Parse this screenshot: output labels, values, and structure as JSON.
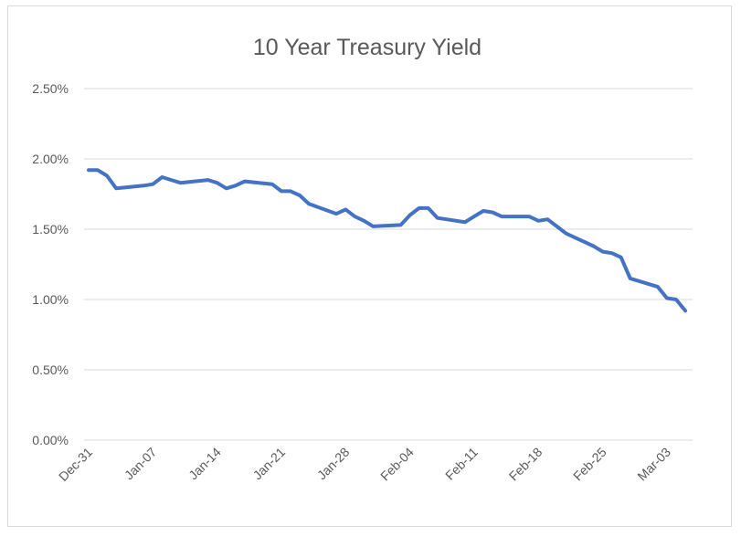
{
  "chart_data": {
    "type": "line",
    "title": "10 Year Treasury Yield",
    "xlabel": "",
    "ylabel": "",
    "ylim": [
      0,
      0.025
    ],
    "y_tick_values": [
      0,
      0.005,
      0.01,
      0.015,
      0.02,
      0.025
    ],
    "y_tick_labels": [
      "0.00%",
      "0.50%",
      "1.00%",
      "1.50%",
      "2.00%",
      "2.50%"
    ],
    "x_tick_labels": [
      "Dec-31",
      "Jan-07",
      "Jan-14",
      "Jan-21",
      "Jan-28",
      "Feb-04",
      "Feb-11",
      "Feb-18",
      "Feb-25",
      "Mar-03"
    ],
    "grid": "horizontal",
    "legend": "none",
    "series_color": "#4472c4",
    "series": [
      {
        "values": [
          {
            "date": "Dec-31",
            "value": 0.0192
          },
          {
            "date": "Jan-01",
            "value": 0.0192
          },
          {
            "date": "Jan-02",
            "value": 0.0188
          },
          {
            "date": "Jan-03",
            "value": 0.0179
          },
          {
            "date": "Jan-06",
            "value": 0.0181
          },
          {
            "date": "Jan-07",
            "value": 0.0182
          },
          {
            "date": "Jan-08",
            "value": 0.0187
          },
          {
            "date": "Jan-09",
            "value": 0.0185
          },
          {
            "date": "Jan-10",
            "value": 0.0183
          },
          {
            "date": "Jan-13",
            "value": 0.0185
          },
          {
            "date": "Jan-14",
            "value": 0.0183
          },
          {
            "date": "Jan-15",
            "value": 0.0179
          },
          {
            "date": "Jan-16",
            "value": 0.0181
          },
          {
            "date": "Jan-17",
            "value": 0.0184
          },
          {
            "date": "Jan-20",
            "value": 0.0182
          },
          {
            "date": "Jan-21",
            "value": 0.0177
          },
          {
            "date": "Jan-22",
            "value": 0.0177
          },
          {
            "date": "Jan-23",
            "value": 0.0174
          },
          {
            "date": "Jan-24",
            "value": 0.0168
          },
          {
            "date": "Jan-27",
            "value": 0.0161
          },
          {
            "date": "Jan-28",
            "value": 0.0164
          },
          {
            "date": "Jan-29",
            "value": 0.0159
          },
          {
            "date": "Jan-30",
            "value": 0.0156
          },
          {
            "date": "Jan-31",
            "value": 0.0152
          },
          {
            "date": "Feb-03",
            "value": 0.0153
          },
          {
            "date": "Feb-04",
            "value": 0.016
          },
          {
            "date": "Feb-05",
            "value": 0.0165
          },
          {
            "date": "Feb-06",
            "value": 0.0165
          },
          {
            "date": "Feb-07",
            "value": 0.0158
          },
          {
            "date": "Feb-10",
            "value": 0.0155
          },
          {
            "date": "Feb-11",
            "value": 0.0159
          },
          {
            "date": "Feb-12",
            "value": 0.0163
          },
          {
            "date": "Feb-13",
            "value": 0.0162
          },
          {
            "date": "Feb-14",
            "value": 0.0159
          },
          {
            "date": "Feb-17",
            "value": 0.0159
          },
          {
            "date": "Feb-18",
            "value": 0.0156
          },
          {
            "date": "Feb-19",
            "value": 0.0157
          },
          {
            "date": "Feb-20",
            "value": 0.0152
          },
          {
            "date": "Feb-21",
            "value": 0.0147
          },
          {
            "date": "Feb-24",
            "value": 0.0138
          },
          {
            "date": "Feb-25",
            "value": 0.0134
          },
          {
            "date": "Feb-26",
            "value": 0.0133
          },
          {
            "date": "Feb-27",
            "value": 0.013
          },
          {
            "date": "Feb-28",
            "value": 0.0115
          },
          {
            "date": "Mar-02",
            "value": 0.0109
          },
          {
            "date": "Mar-03",
            "value": 0.0101
          },
          {
            "date": "Mar-04",
            "value": 0.01
          },
          {
            "date": "Mar-05",
            "value": 0.0092
          }
        ]
      }
    ]
  }
}
